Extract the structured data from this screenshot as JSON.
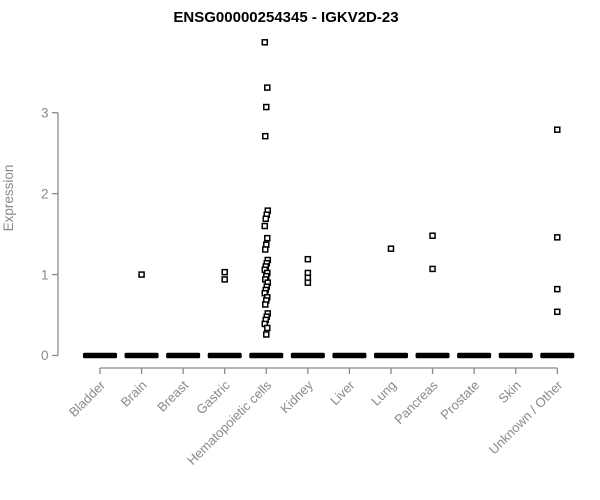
{
  "chart_data": {
    "type": "scatter",
    "title": "ENSG00000254345 - IGKV2D-23",
    "gene_id": "ENSG00000254345",
    "gene_symbol": "IGKV2D-23",
    "xlabel": "",
    "ylabel": "Expression",
    "ylim": [
      0,
      3.95
    ],
    "yticks": [
      0,
      1,
      2,
      3
    ],
    "grid": false,
    "legend": "none",
    "marker": "open-square",
    "colors": {
      "points": "#000000",
      "axis": "#8a8a8a",
      "tick_labels": "#8a8a8a",
      "title": "#000000",
      "background": "#ffffff"
    },
    "categories": [
      "Bladder",
      "Brain",
      "Breast",
      "Gastric",
      "Hematopoietic cells",
      "Kidney",
      "Liver",
      "Lung",
      "Pancreas",
      "Prostate",
      "Skin",
      "Unknown / Other"
    ],
    "series": [
      {
        "category": "Bladder",
        "nonzero_values": [],
        "zero_cluster": true
      },
      {
        "category": "Brain",
        "nonzero_values": [
          1.0
        ],
        "zero_cluster": true
      },
      {
        "category": "Breast",
        "nonzero_values": [],
        "zero_cluster": true
      },
      {
        "category": "Gastric",
        "nonzero_values": [
          1.03,
          0.94
        ],
        "zero_cluster": true
      },
      {
        "category": "Hematopoietic cells",
        "nonzero_values": [
          3.87,
          3.31,
          3.07,
          2.71,
          1.79,
          1.74,
          1.69,
          1.6,
          1.45,
          1.37,
          1.31,
          1.18,
          1.14,
          1.1,
          1.06,
          1.02,
          0.98,
          0.94,
          0.9,
          0.85,
          0.81,
          0.77,
          0.72,
          0.68,
          0.63,
          0.52,
          0.48,
          0.44,
          0.39,
          0.34,
          0.26
        ],
        "zero_cluster": true
      },
      {
        "category": "Kidney",
        "nonzero_values": [
          1.19,
          1.02,
          0.96,
          0.9
        ],
        "zero_cluster": true
      },
      {
        "category": "Liver",
        "nonzero_values": [],
        "zero_cluster": true
      },
      {
        "category": "Lung",
        "nonzero_values": [
          1.32
        ],
        "zero_cluster": true
      },
      {
        "category": "Pancreas",
        "nonzero_values": [
          1.48,
          1.07
        ],
        "zero_cluster": true
      },
      {
        "category": "Prostate",
        "nonzero_values": [],
        "zero_cluster": true
      },
      {
        "category": "Skin",
        "nonzero_values": [],
        "zero_cluster": true
      },
      {
        "category": "Unknown / Other",
        "nonzero_values": [
          2.79,
          1.46,
          0.82,
          0.54
        ],
        "zero_cluster": true
      }
    ]
  }
}
